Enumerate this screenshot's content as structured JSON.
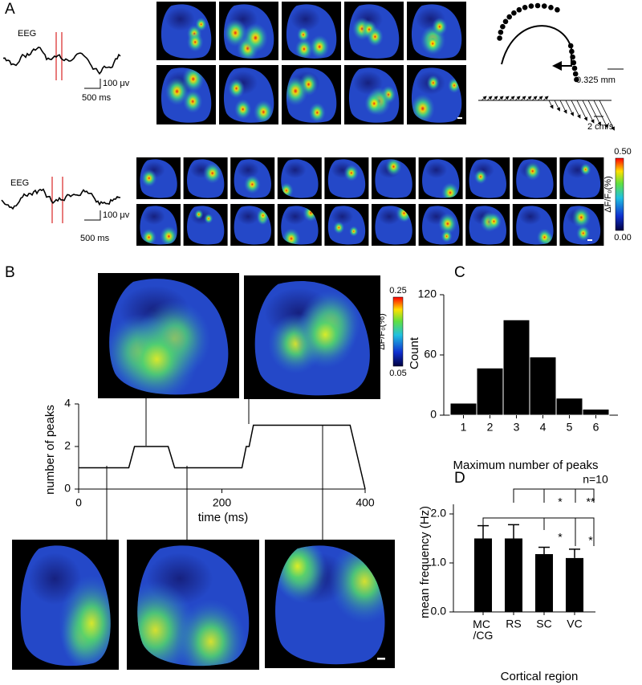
{
  "panel_labels": {
    "a": "A",
    "b": "B",
    "c": "C",
    "d": "D"
  },
  "panel_a": {
    "row1": {
      "eeg_label": "EEG",
      "amplitude_scale": "100 μv",
      "time_scale": "500 ms"
    },
    "row2": {
      "eeg_label": "EEG",
      "amplitude_scale": "100 μv",
      "time_scale": "500 ms"
    },
    "trajectory_scale": "0.325 mm",
    "velocity_scale": "2 cm/s",
    "colorbar": {
      "label": "ΔF/F₀(%)",
      "ticks": [
        {
          "value": 0,
          "label": "0.00"
        },
        {
          "value": 0.5,
          "label": "0.50"
        }
      ]
    }
  },
  "panel_b_colorbar": {
    "label": "ΔF/F₀(%)",
    "ticks": [
      {
        "value": 0.05,
        "label": "0.05"
      },
      {
        "value": 0.25,
        "label": "0.25"
      }
    ]
  },
  "chart_data": [
    {
      "type": "line",
      "x": [
        0,
        70,
        78,
        125,
        134,
        228,
        234,
        238,
        244,
        379,
        400
      ],
      "values": [
        1,
        1,
        2,
        2,
        1,
        1,
        2,
        2,
        3,
        3,
        0
      ],
      "xlabel": "time (ms)",
      "ylabel": "number of peaks",
      "xlim": [
        0,
        400
      ],
      "ylim": [
        0,
        4
      ],
      "xticks": [
        0,
        200,
        400
      ],
      "yticks": [
        0,
        2,
        4
      ],
      "color": "#000000"
    },
    {
      "type": "histogram",
      "categories": [
        "1",
        "2",
        "3",
        "4",
        "5",
        "6"
      ],
      "values": [
        12,
        47,
        95,
        58,
        17,
        6
      ],
      "xlabel": "Maximum number of peaks",
      "ylabel": "Count",
      "ylim": [
        0,
        120
      ],
      "yticks": [
        0,
        60,
        120
      ],
      "color": "#000000"
    },
    {
      "type": "bar",
      "categories": [
        "MC /CG",
        "RS",
        "SC",
        "VC"
      ],
      "values": [
        1.5,
        1.5,
        1.18,
        1.1
      ],
      "errors": [
        0.26,
        0.28,
        0.14,
        0.18
      ],
      "xlabel": "Cortical region",
      "ylabel": "mean frequency (Hz)",
      "ylim": [
        0,
        2
      ],
      "yticks": [
        {
          "value": 0,
          "label": "0.0"
        },
        {
          "value": 1,
          "label": "1.0"
        },
        {
          "value": 2,
          "label": "2.0"
        }
      ],
      "color": "#000000",
      "annotations": [
        "n=10",
        "*",
        "**",
        "*",
        "*"
      ]
    }
  ]
}
